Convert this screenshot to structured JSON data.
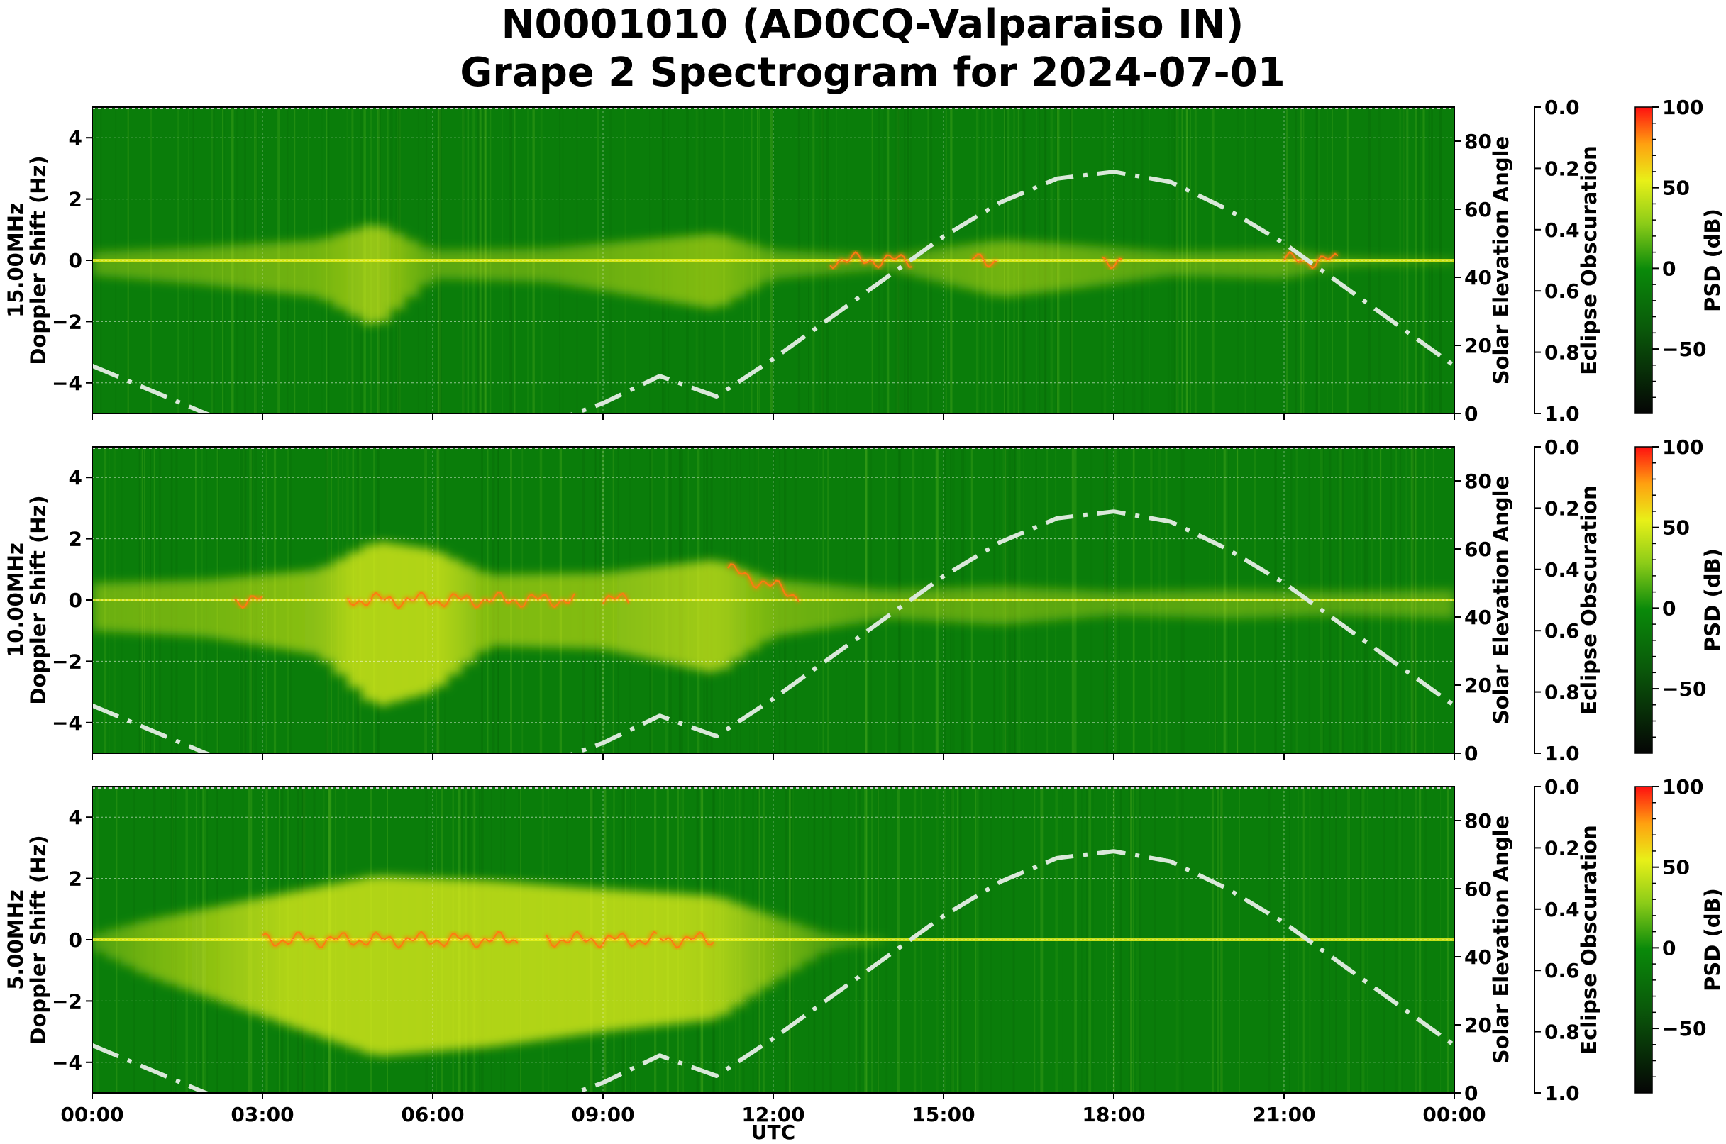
{
  "title_line1": "N0001010 (AD0CQ-Valparaiso IN)",
  "title_line2": "Grape 2 Spectrogram for 2024-07-01",
  "colors": {
    "background_green": "#0a7d0a",
    "spectrogram_yellow": "#e6f01a",
    "spectrogram_orange": "#ff7a10",
    "solar_curve": "#d9e8d9"
  },
  "chart_data": [
    {
      "type": "heatmap",
      "title": "",
      "frequency_label": "15.00MHz",
      "ylabel": "Doppler Shift (Hz)",
      "y2label": "Solar Elevation Angle",
      "y3label": "Eclipse Obscuration",
      "colorbar_label": "PSD (dB)",
      "ylim": [
        -5,
        5
      ],
      "yticks": [
        4,
        2,
        0,
        -2,
        -4
      ],
      "ytick_labels": [
        "4",
        "2",
        "0",
        "−2",
        "−4"
      ],
      "y2lim": [
        0,
        90
      ],
      "y2ticks": [
        80,
        60,
        40,
        20,
        0
      ],
      "y3lim": [
        0.0,
        1.0
      ],
      "y3ticks": [
        "0.0",
        "0.2",
        "0.4",
        "0.6",
        "0.8",
        "1.0"
      ],
      "colorbar_ticks": [
        100,
        50,
        0,
        -50
      ],
      "colorbar_tick_labels": [
        "100",
        "50",
        "0",
        "−50"
      ],
      "colorbar_range": [
        -90,
        100
      ]
    },
    {
      "type": "heatmap",
      "title": "",
      "frequency_label": "10.00MHz",
      "ylabel": "Doppler Shift (Hz)",
      "y2label": "Solar Elevation Angle",
      "y3label": "Eclipse Obscuration",
      "colorbar_label": "PSD (dB)",
      "ylim": [
        -5,
        5
      ],
      "yticks": [
        4,
        2,
        0,
        -2,
        -4
      ],
      "ytick_labels": [
        "4",
        "2",
        "0",
        "−2",
        "−4"
      ],
      "y2lim": [
        0,
        90
      ],
      "y2ticks": [
        80,
        60,
        40,
        20,
        0
      ],
      "y3lim": [
        0.0,
        1.0
      ],
      "y3ticks": [
        "0.0",
        "0.2",
        "0.4",
        "0.6",
        "0.8",
        "1.0"
      ],
      "colorbar_ticks": [
        100,
        50,
        0,
        -50
      ],
      "colorbar_tick_labels": [
        "100",
        "50",
        "0",
        "−50"
      ],
      "colorbar_range": [
        -90,
        100
      ]
    },
    {
      "type": "heatmap",
      "title": "",
      "frequency_label": "5.00MHz",
      "ylabel": "Doppler Shift (Hz)",
      "y2label": "Solar Elevation Angle",
      "y3label": "Eclipse Obscuration",
      "colorbar_label": "PSD (dB)",
      "ylim": [
        -5,
        5
      ],
      "yticks": [
        4,
        2,
        0,
        -2,
        -4
      ],
      "ytick_labels": [
        "4",
        "2",
        "0",
        "−2",
        "−4"
      ],
      "y2lim": [
        0,
        90
      ],
      "y2ticks": [
        80,
        60,
        40,
        20,
        0
      ],
      "y3lim": [
        0.0,
        1.0
      ],
      "y3ticks": [
        "0.0",
        "0.2",
        "0.4",
        "0.6",
        "0.8",
        "1.0"
      ],
      "colorbar_ticks": [
        100,
        50,
        0,
        -50
      ],
      "colorbar_tick_labels": [
        "100",
        "50",
        "0",
        "−50"
      ],
      "colorbar_range": [
        -90,
        100
      ]
    }
  ],
  "x_axis": {
    "label": "UTC",
    "hours": [
      0,
      3,
      6,
      9,
      12,
      15,
      18,
      21,
      24
    ],
    "tick_labels": [
      "00:00",
      "03:00",
      "06:00",
      "09:00",
      "12:00",
      "15:00",
      "18:00",
      "21:00",
      "00:00"
    ]
  },
  "solar_elevation": {
    "hours": [
      0,
      1,
      2,
      3,
      4,
      5,
      6,
      7,
      8,
      9,
      10,
      10.5,
      11,
      12,
      13,
      14,
      15,
      16,
      17,
      18,
      19,
      20,
      21,
      22,
      23,
      24
    ],
    "degrees": [
      14,
      7,
      0,
      -6,
      -10,
      -12,
      -11,
      -8,
      -3,
      3,
      11,
      0,
      5,
      16,
      28,
      40,
      52,
      62,
      69,
      71,
      68,
      60,
      50,
      38,
      26,
      14
    ]
  }
}
